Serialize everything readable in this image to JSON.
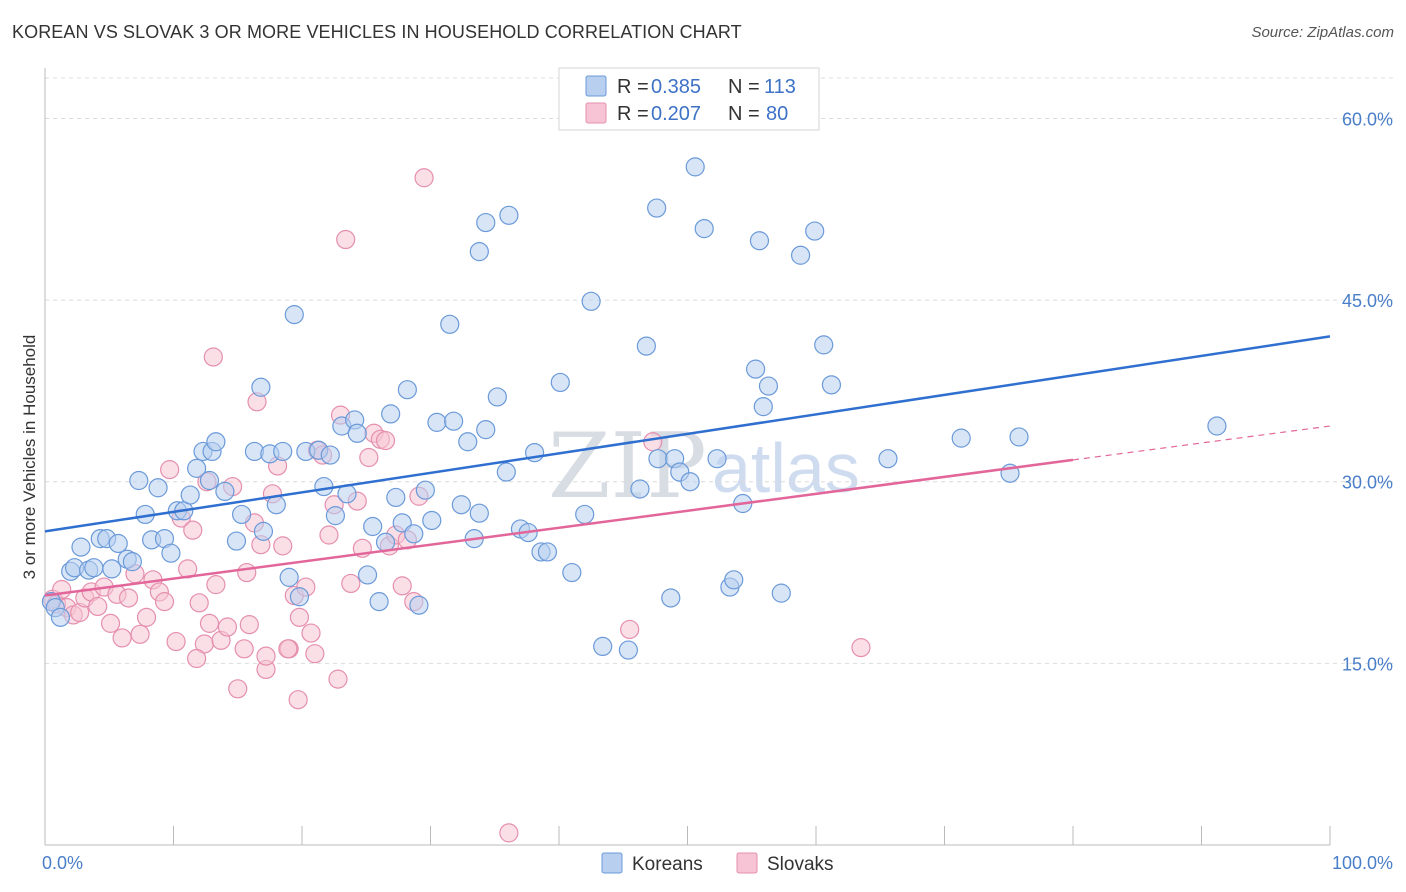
{
  "title": "KOREAN VS SLOVAK 3 OR MORE VEHICLES IN HOUSEHOLD CORRELATION CHART",
  "source": "Source: ZipAtlas.com",
  "watermark": {
    "zip": "ZIP",
    "atlas": "atlas"
  },
  "colors": {
    "koreans_fill": "#b8cff0",
    "koreans_stroke": "#6b9ad9",
    "koreans_line": "#2f6fcf",
    "slovaks_fill": "#f6c4d4",
    "slovaks_stroke": "#e58fae",
    "slovaks_line": "#e2669a",
    "grid": "#dcdcdc",
    "tick_label": "#4a7ec9"
  },
  "legend": {
    "rows": [
      {
        "r_label": "R = ",
        "r_value": "0.385",
        "n_label": "N = ",
        "n_value": "113"
      },
      {
        "r_label": "R = ",
        "r_value": "0.207",
        "n_label": "N = ",
        "n_value": "80"
      }
    ]
  },
  "bottom_legend": [
    "Koreans",
    "Slovaks"
  ],
  "chart_data": {
    "type": "scatter",
    "ylabel": "3 or more Vehicles in Household",
    "xlim": [
      0,
      100
    ],
    "ylim": [
      0,
      64
    ],
    "x_tick_labels": {
      "left": "0.0%",
      "right": "100.0%"
    },
    "y_ticks": [
      {
        "value": 15,
        "label": "15.0%"
      },
      {
        "value": 30,
        "label": "30.0%"
      },
      {
        "value": 45,
        "label": "45.0%"
      },
      {
        "value": 60,
        "label": "60.0%"
      }
    ],
    "grid": true,
    "series": [
      {
        "name": "Koreans",
        "trend": {
          "x0": 0,
          "y0": 25.9,
          "x1": 100,
          "y1": 42.0
        },
        "points": [
          [
            0.5,
            20.1
          ],
          [
            0.8,
            19.6
          ],
          [
            1.2,
            18.8
          ],
          [
            2.0,
            22.6
          ],
          [
            2.3,
            22.9
          ],
          [
            2.8,
            24.6
          ],
          [
            3.4,
            22.7
          ],
          [
            3.8,
            22.9
          ],
          [
            4.3,
            25.3
          ],
          [
            4.8,
            25.3
          ],
          [
            5.2,
            22.8
          ],
          [
            5.7,
            24.9
          ],
          [
            6.4,
            23.6
          ],
          [
            6.8,
            23.4
          ],
          [
            7.3,
            30.1
          ],
          [
            7.8,
            27.3
          ],
          [
            8.3,
            25.2
          ],
          [
            8.8,
            29.5
          ],
          [
            9.3,
            25.3
          ],
          [
            9.8,
            24.1
          ],
          [
            10.3,
            27.6
          ],
          [
            10.8,
            27.6
          ],
          [
            11.3,
            28.9
          ],
          [
            11.8,
            31.1
          ],
          [
            12.3,
            32.5
          ],
          [
            12.8,
            30.1
          ],
          [
            13.0,
            32.5
          ],
          [
            13.3,
            33.3
          ],
          [
            14.0,
            29.2
          ],
          [
            14.9,
            25.1
          ],
          [
            15.3,
            27.3
          ],
          [
            16.3,
            32.5
          ],
          [
            16.8,
            37.8
          ],
          [
            17.0,
            25.9
          ],
          [
            17.5,
            32.3
          ],
          [
            18.0,
            28.1
          ],
          [
            18.5,
            32.5
          ],
          [
            19.0,
            22.1
          ],
          [
            19.4,
            43.8
          ],
          [
            19.8,
            20.5
          ],
          [
            20.3,
            32.5
          ],
          [
            21.3,
            32.6
          ],
          [
            21.7,
            29.6
          ],
          [
            22.2,
            32.2
          ],
          [
            22.6,
            27.2
          ],
          [
            23.1,
            34.6
          ],
          [
            23.5,
            29.0
          ],
          [
            24.1,
            35.1
          ],
          [
            24.3,
            34.0
          ],
          [
            25.1,
            22.3
          ],
          [
            25.5,
            26.3
          ],
          [
            26.0,
            20.1
          ],
          [
            26.5,
            25.0
          ],
          [
            26.9,
            35.6
          ],
          [
            27.3,
            28.7
          ],
          [
            27.8,
            26.6
          ],
          [
            28.2,
            37.6
          ],
          [
            28.7,
            25.7
          ],
          [
            29.1,
            19.8
          ],
          [
            29.6,
            29.3
          ],
          [
            30.1,
            26.8
          ],
          [
            30.5,
            34.9
          ],
          [
            31.5,
            43.0
          ],
          [
            31.8,
            35.0
          ],
          [
            32.4,
            28.1
          ],
          [
            32.9,
            33.3
          ],
          [
            33.4,
            25.3
          ],
          [
            33.8,
            27.4
          ],
          [
            34.3,
            34.3
          ],
          [
            35.2,
            37.0
          ],
          [
            35.9,
            30.8
          ],
          [
            37.0,
            26.1
          ],
          [
            37.6,
            25.8
          ],
          [
            38.1,
            32.4
          ],
          [
            38.6,
            24.2
          ],
          [
            39.1,
            24.2
          ],
          [
            40.1,
            38.2
          ],
          [
            41.0,
            22.5
          ],
          [
            42.0,
            27.3
          ],
          [
            42.5,
            44.9
          ],
          [
            43.4,
            16.4
          ],
          [
            45.4,
            16.1
          ],
          [
            46.3,
            29.4
          ],
          [
            46.8,
            41.2
          ],
          [
            47.7,
            31.9
          ],
          [
            48.7,
            20.4
          ],
          [
            49.0,
            31.9
          ],
          [
            49.4,
            30.8
          ],
          [
            50.2,
            30.0
          ],
          [
            52.3,
            31.9
          ],
          [
            53.3,
            21.3
          ],
          [
            53.6,
            21.9
          ],
          [
            54.3,
            28.2
          ],
          [
            55.3,
            39.3
          ],
          [
            55.9,
            36.2
          ],
          [
            56.3,
            37.9
          ],
          [
            57.3,
            20.8
          ],
          [
            58.8,
            48.7
          ],
          [
            59.9,
            50.7
          ],
          [
            60.6,
            41.3
          ],
          [
            61.2,
            38.0
          ],
          [
            47.6,
            52.6
          ],
          [
            51.3,
            50.9
          ],
          [
            36.1,
            52.0
          ],
          [
            34.3,
            51.4
          ],
          [
            33.8,
            49.0
          ],
          [
            50.6,
            56.0
          ],
          [
            65.6,
            31.9
          ],
          [
            71.3,
            33.6
          ],
          [
            75.1,
            30.7
          ],
          [
            75.8,
            33.7
          ],
          [
            91.2,
            34.6
          ],
          [
            55.6,
            49.9
          ]
        ]
      },
      {
        "name": "Slovaks",
        "trend": {
          "x0": 0,
          "y0": 20.6,
          "x1": 80,
          "y1": 31.8,
          "dash_x1": 100,
          "dash_y1": 34.6
        },
        "points": [
          [
            0.6,
            20.3
          ],
          [
            0.9,
            19.9
          ],
          [
            1.3,
            21.1
          ],
          [
            1.7,
            19.6
          ],
          [
            2.2,
            19.0
          ],
          [
            2.7,
            19.2
          ],
          [
            3.1,
            20.4
          ],
          [
            3.6,
            20.9
          ],
          [
            4.1,
            19.7
          ],
          [
            4.6,
            21.3
          ],
          [
            5.1,
            18.3
          ],
          [
            5.6,
            20.7
          ],
          [
            6.0,
            17.1
          ],
          [
            6.5,
            20.4
          ],
          [
            7.0,
            22.4
          ],
          [
            7.4,
            17.4
          ],
          [
            7.9,
            18.8
          ],
          [
            8.4,
            21.9
          ],
          [
            8.9,
            20.9
          ],
          [
            9.3,
            20.1
          ],
          [
            9.7,
            31.0
          ],
          [
            10.2,
            16.8
          ],
          [
            10.6,
            27.0
          ],
          [
            11.1,
            22.8
          ],
          [
            11.5,
            26.0
          ],
          [
            12.0,
            20.0
          ],
          [
            12.4,
            16.6
          ],
          [
            12.8,
            18.3
          ],
          [
            13.3,
            21.5
          ],
          [
            13.7,
            16.9
          ],
          [
            14.2,
            18.0
          ],
          [
            14.6,
            29.6
          ],
          [
            15.0,
            12.9
          ],
          [
            15.5,
            16.2
          ],
          [
            15.9,
            18.2
          ],
          [
            16.3,
            26.6
          ],
          [
            16.8,
            24.8
          ],
          [
            17.2,
            14.5
          ],
          [
            17.7,
            29.0
          ],
          [
            18.1,
            31.3
          ],
          [
            18.5,
            24.7
          ],
          [
            19.0,
            16.2
          ],
          [
            19.4,
            20.6
          ],
          [
            19.8,
            18.8
          ],
          [
            20.3,
            21.3
          ],
          [
            20.7,
            17.5
          ],
          [
            21.2,
            32.6
          ],
          [
            21.6,
            32.2
          ],
          [
            22.1,
            25.6
          ],
          [
            22.5,
            28.1
          ],
          [
            23.0,
            35.5
          ],
          [
            23.4,
            50.0
          ],
          [
            23.8,
            21.6
          ],
          [
            24.3,
            28.4
          ],
          [
            24.7,
            24.5
          ],
          [
            25.2,
            32.0
          ],
          [
            25.6,
            34.0
          ],
          [
            26.1,
            33.5
          ],
          [
            26.5,
            33.4
          ],
          [
            26.8,
            24.7
          ],
          [
            27.3,
            25.6
          ],
          [
            27.8,
            21.4
          ],
          [
            28.2,
            25.2
          ],
          [
            28.7,
            20.1
          ],
          [
            29.1,
            28.8
          ],
          [
            29.5,
            55.1
          ],
          [
            13.1,
            40.3
          ],
          [
            15.7,
            22.5
          ],
          [
            12.6,
            30.0
          ],
          [
            11.8,
            15.4
          ],
          [
            18.9,
            16.2
          ],
          [
            22.8,
            13.7
          ],
          [
            19.7,
            12.0
          ],
          [
            21.0,
            15.8
          ],
          [
            17.2,
            15.6
          ],
          [
            36.1,
            1.0
          ],
          [
            45.5,
            17.8
          ],
          [
            47.3,
            33.3
          ],
          [
            63.5,
            16.3
          ],
          [
            16.5,
            36.6
          ]
        ]
      }
    ]
  }
}
